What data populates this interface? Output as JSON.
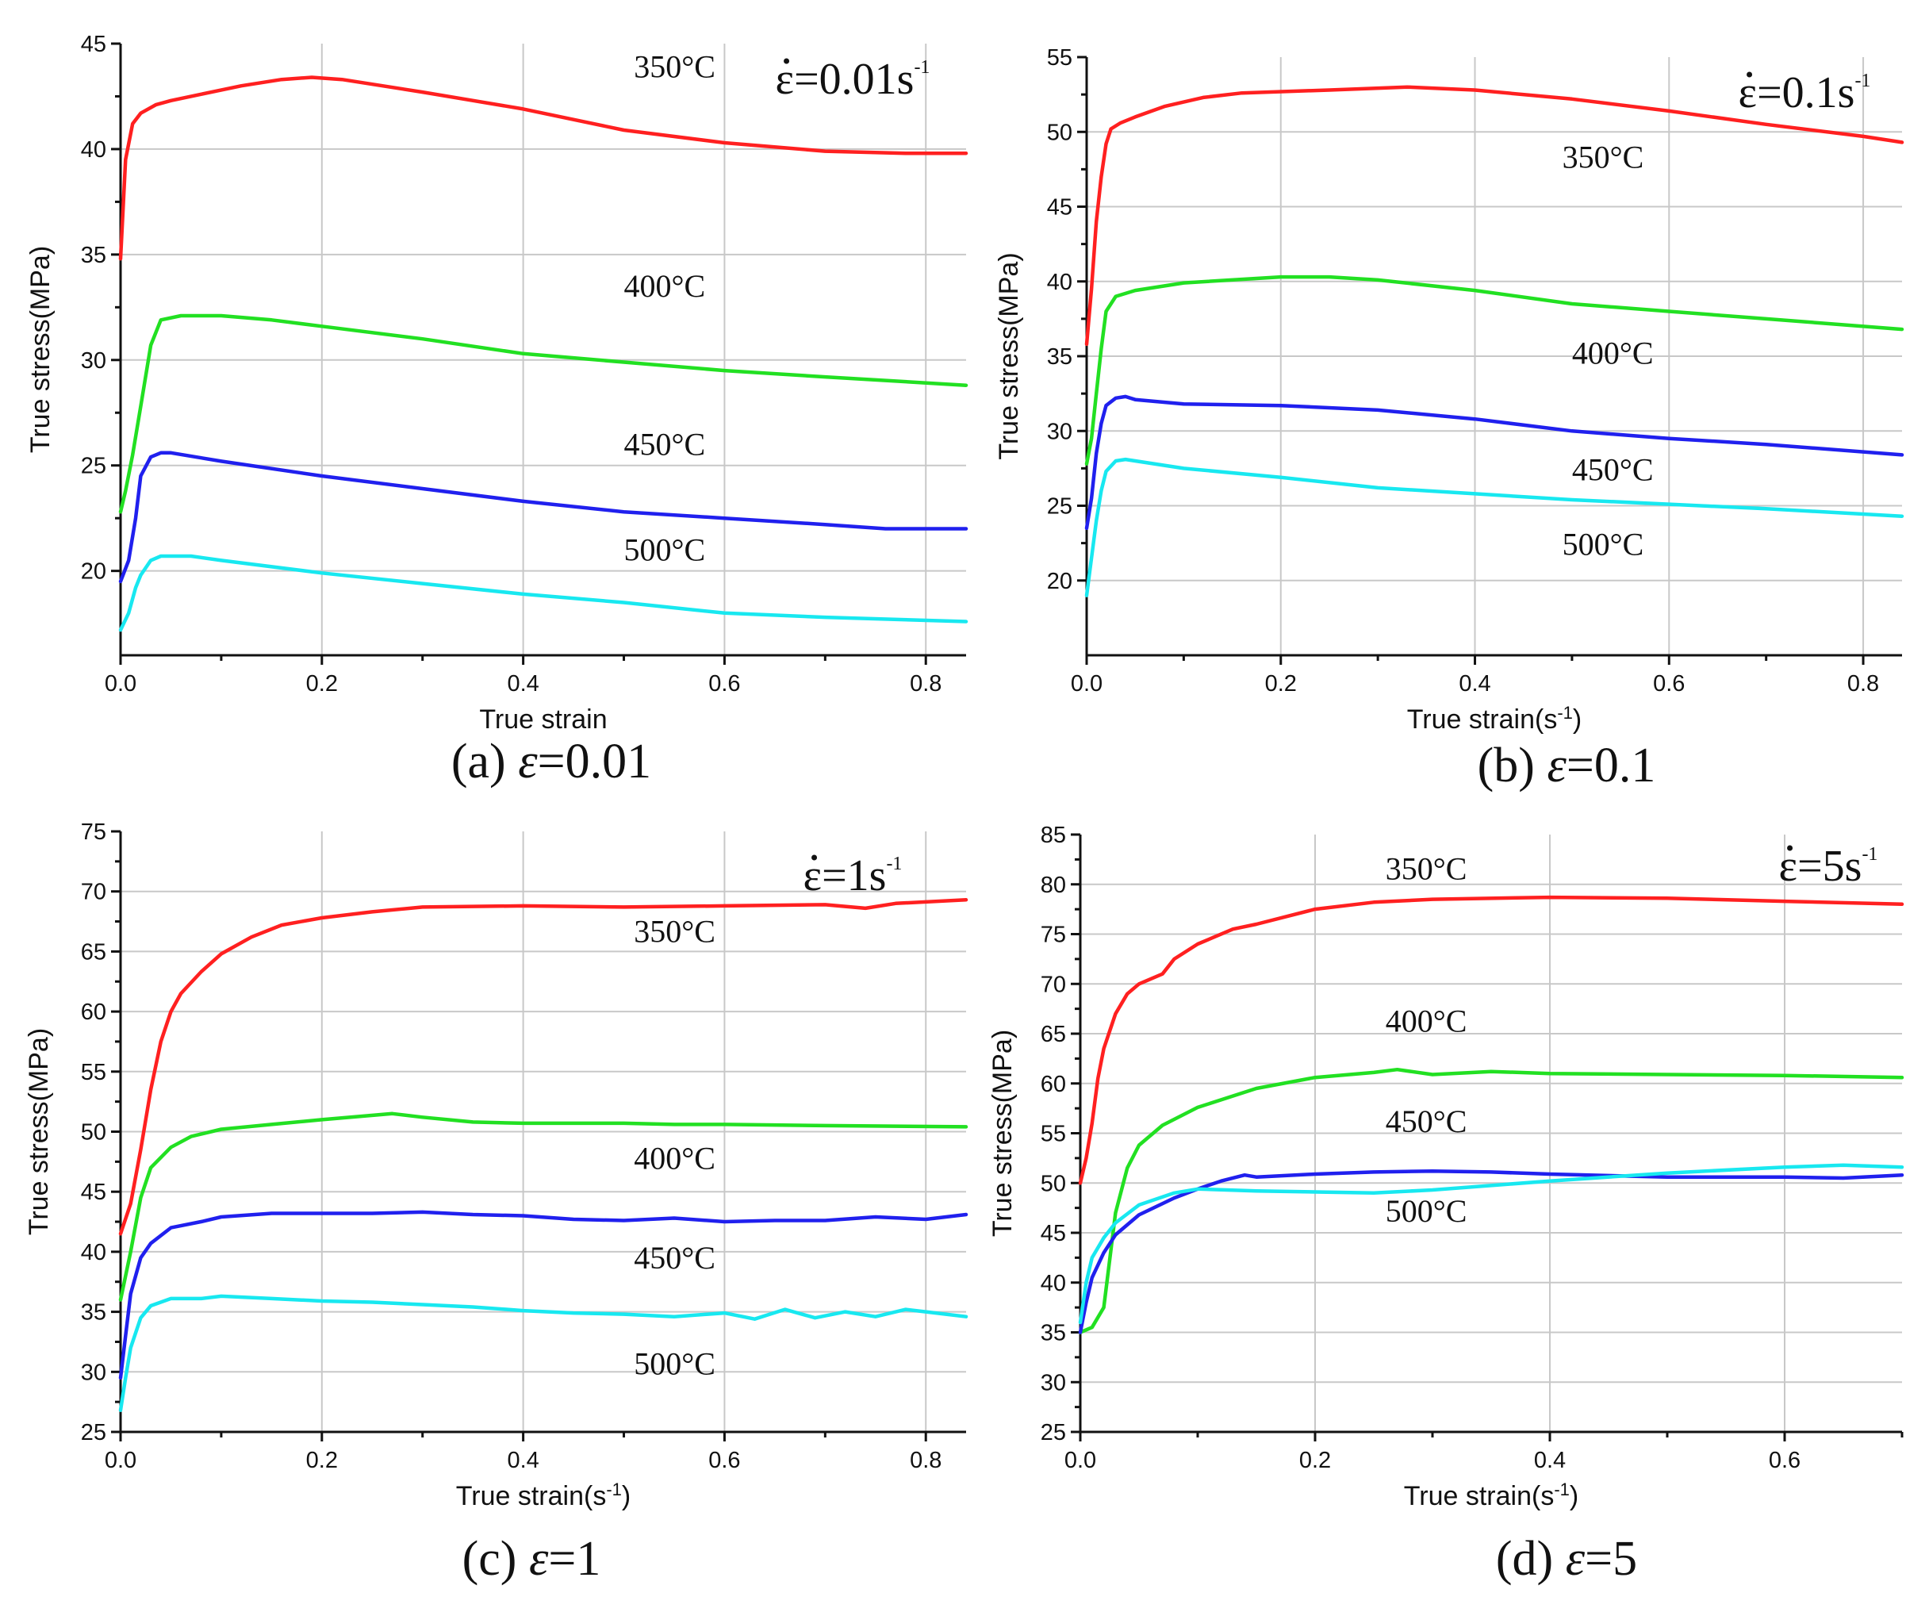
{
  "colors": {
    "350": "#ff2020",
    "400": "#22e022",
    "450": "#2020ee",
    "500": "#18e8f0"
  },
  "chart_data": [
    {
      "type": "line",
      "panel": "a",
      "caption_prefix": "(a) ",
      "caption_symbol": "ε",
      "caption_value": "=0.01",
      "rate_label": "ε=0.01s",
      "rate_sup": "-1",
      "xlabel": "True strain",
      "ylabel": "True stress(MPa)",
      "xlim": [
        0,
        0.84
      ],
      "ylim": [
        16,
        45
      ],
      "xticks": [
        0.0,
        0.2,
        0.4,
        0.6,
        0.8
      ],
      "xtick_labels": [
        "0.0",
        "0.2",
        "0.4",
        "0.6",
        "0.8"
      ],
      "yticks": [
        20,
        25,
        30,
        35,
        40,
        45
      ],
      "ytick_labels": [
        "20",
        "25",
        "30",
        "35",
        "40",
        "45"
      ],
      "grid": true,
      "series": [
        {
          "name": "350°C",
          "color_key": "350",
          "label_at": [
            0.51,
            43.4
          ],
          "x": [
            0,
            0.005,
            0.012,
            0.02,
            0.035,
            0.05,
            0.08,
            0.12,
            0.16,
            0.19,
            0.22,
            0.3,
            0.4,
            0.5,
            0.6,
            0.7,
            0.78,
            0.84
          ],
          "y": [
            34.8,
            39.5,
            41.2,
            41.7,
            42.1,
            42.3,
            42.6,
            43.0,
            43.3,
            43.4,
            43.3,
            42.7,
            41.9,
            40.9,
            40.3,
            39.9,
            39.8,
            39.8
          ]
        },
        {
          "name": "400°C",
          "color_key": "400",
          "label_at": [
            0.5,
            33.0
          ],
          "x": [
            0,
            0.005,
            0.012,
            0.02,
            0.03,
            0.04,
            0.06,
            0.1,
            0.15,
            0.2,
            0.3,
            0.4,
            0.5,
            0.6,
            0.7,
            0.84
          ],
          "y": [
            22.8,
            23.8,
            25.5,
            27.8,
            30.7,
            31.9,
            32.1,
            32.1,
            31.9,
            31.6,
            31.0,
            30.3,
            29.9,
            29.5,
            29.2,
            28.8
          ]
        },
        {
          "name": "450°C",
          "color_key": "450",
          "label_at": [
            0.5,
            25.5
          ],
          "x": [
            0,
            0.008,
            0.015,
            0.02,
            0.03,
            0.04,
            0.05,
            0.1,
            0.2,
            0.3,
            0.4,
            0.5,
            0.6,
            0.7,
            0.76,
            0.84
          ],
          "y": [
            19.5,
            20.5,
            22.5,
            24.5,
            25.4,
            25.6,
            25.6,
            25.2,
            24.5,
            23.9,
            23.3,
            22.8,
            22.5,
            22.2,
            22.0,
            22.0
          ]
        },
        {
          "name": "500°C",
          "color_key": "500",
          "label_at": [
            0.5,
            20.5
          ],
          "x": [
            0,
            0.008,
            0.015,
            0.02,
            0.03,
            0.04,
            0.05,
            0.07,
            0.1,
            0.2,
            0.3,
            0.4,
            0.5,
            0.6,
            0.7,
            0.84
          ],
          "y": [
            17.2,
            18.0,
            19.2,
            19.8,
            20.5,
            20.7,
            20.7,
            20.7,
            20.5,
            19.9,
            19.4,
            18.9,
            18.5,
            18.0,
            17.8,
            17.6
          ]
        }
      ]
    },
    {
      "type": "line",
      "panel": "b",
      "caption_prefix": "(b) ",
      "caption_symbol": "ε",
      "caption_value": "=0.1",
      "rate_label": "ε=0.1s",
      "rate_sup": "-1",
      "xlabel": "True strain(s",
      "xlabel_sup": "-1",
      "xlabel_end": ")",
      "ylabel": "True stress(MPa)",
      "xlim": [
        0,
        0.84
      ],
      "ylim": [
        15,
        55
      ],
      "xticks": [
        0.0,
        0.2,
        0.4,
        0.6,
        0.8
      ],
      "xtick_labels": [
        "0.0",
        "0.2",
        "0.4",
        "0.6",
        "0.8"
      ],
      "yticks": [
        20,
        25,
        30,
        35,
        40,
        45,
        50,
        55
      ],
      "ytick_labels": [
        "20",
        "25",
        "30",
        "35",
        "40",
        "45",
        "50",
        "55"
      ],
      "grid": true,
      "series": [
        {
          "name": "350°C",
          "color_key": "350",
          "label_at": [
            0.49,
            47.6
          ],
          "x": [
            0,
            0.005,
            0.01,
            0.015,
            0.02,
            0.025,
            0.035,
            0.05,
            0.08,
            0.12,
            0.16,
            0.25,
            0.33,
            0.4,
            0.5,
            0.6,
            0.7,
            0.8,
            0.84
          ],
          "y": [
            35.8,
            39.5,
            44.0,
            47.0,
            49.2,
            50.2,
            50.6,
            51.0,
            51.7,
            52.3,
            52.6,
            52.8,
            53.0,
            52.8,
            52.2,
            51.4,
            50.5,
            49.7,
            49.3
          ]
        },
        {
          "name": "400°C",
          "color_key": "400",
          "label_at": [
            0.5,
            34.5
          ],
          "x": [
            0,
            0.005,
            0.01,
            0.015,
            0.02,
            0.03,
            0.05,
            0.1,
            0.2,
            0.25,
            0.3,
            0.4,
            0.5,
            0.6,
            0.7,
            0.84
          ],
          "y": [
            27.8,
            29.5,
            32.5,
            35.5,
            38.0,
            39.0,
            39.4,
            39.9,
            40.3,
            40.3,
            40.1,
            39.4,
            38.5,
            38.0,
            37.5,
            36.8
          ]
        },
        {
          "name": "450°C",
          "color_key": "450",
          "label_at": [
            0.5,
            26.7
          ],
          "x": [
            0,
            0.005,
            0.01,
            0.015,
            0.02,
            0.03,
            0.04,
            0.05,
            0.1,
            0.2,
            0.3,
            0.4,
            0.5,
            0.6,
            0.7,
            0.84
          ],
          "y": [
            23.5,
            25.5,
            28.5,
            30.5,
            31.7,
            32.2,
            32.3,
            32.1,
            31.8,
            31.7,
            31.4,
            30.8,
            30.0,
            29.5,
            29.1,
            28.4
          ]
        },
        {
          "name": "500°C",
          "color_key": "500",
          "label_at": [
            0.49,
            21.7
          ],
          "x": [
            0,
            0.005,
            0.01,
            0.015,
            0.02,
            0.03,
            0.04,
            0.05,
            0.1,
            0.2,
            0.3,
            0.4,
            0.5,
            0.6,
            0.7,
            0.84
          ],
          "y": [
            19.0,
            21.5,
            24.0,
            26.0,
            27.3,
            28.0,
            28.1,
            28.0,
            27.5,
            26.9,
            26.2,
            25.8,
            25.4,
            25.1,
            24.8,
            24.3
          ]
        }
      ]
    },
    {
      "type": "line",
      "panel": "c",
      "caption_prefix": "(c)  ",
      "caption_symbol": "ε",
      "caption_value": "=1",
      "rate_label": "ε=1s",
      "rate_sup": "-1",
      "xlabel": "True strain(s",
      "xlabel_sup": "-1",
      "xlabel_end": ")",
      "ylabel": "True stress(MPa)",
      "xlim": [
        0,
        0.84
      ],
      "ylim": [
        25,
        75
      ],
      "xticks": [
        0.0,
        0.2,
        0.4,
        0.6,
        0.8
      ],
      "xtick_labels": [
        "0.0",
        "0.2",
        "0.4",
        "0.6",
        "0.8"
      ],
      "yticks": [
        25,
        30,
        35,
        40,
        45,
        50,
        55,
        60,
        65,
        70,
        75
      ],
      "ytick_labels": [
        "25",
        "30",
        "35",
        "40",
        "45",
        "50",
        "55",
        "60",
        "65",
        "70",
        "75"
      ],
      "grid": true,
      "series": [
        {
          "name": "350°C",
          "color_key": "350",
          "label_at": [
            0.51,
            65.8
          ],
          "x": [
            0,
            0.01,
            0.02,
            0.03,
            0.04,
            0.05,
            0.06,
            0.08,
            0.1,
            0.13,
            0.16,
            0.2,
            0.25,
            0.3,
            0.4,
            0.5,
            0.6,
            0.7,
            0.74,
            0.77,
            0.84
          ],
          "y": [
            41.5,
            44.0,
            48.5,
            53.5,
            57.5,
            60.0,
            61.5,
            63.3,
            64.8,
            66.2,
            67.2,
            67.8,
            68.3,
            68.7,
            68.8,
            68.7,
            68.8,
            68.9,
            68.6,
            69.0,
            69.3
          ]
        },
        {
          "name": "400°C",
          "color_key": "400",
          "label_at": [
            0.51,
            46.9
          ],
          "x": [
            0,
            0.01,
            0.02,
            0.03,
            0.05,
            0.07,
            0.1,
            0.15,
            0.2,
            0.27,
            0.3,
            0.35,
            0.4,
            0.5,
            0.55,
            0.6,
            0.7,
            0.84
          ],
          "y": [
            36.0,
            40.0,
            44.5,
            47.0,
            48.7,
            49.6,
            50.2,
            50.6,
            51.0,
            51.5,
            51.2,
            50.8,
            50.7,
            50.7,
            50.6,
            50.6,
            50.5,
            50.4
          ]
        },
        {
          "name": "450°C",
          "color_key": "450",
          "label_at": [
            0.51,
            38.6
          ],
          "x": [
            0,
            0.005,
            0.01,
            0.02,
            0.03,
            0.05,
            0.08,
            0.1,
            0.15,
            0.2,
            0.25,
            0.3,
            0.35,
            0.4,
            0.45,
            0.5,
            0.55,
            0.6,
            0.65,
            0.7,
            0.75,
            0.8,
            0.84
          ],
          "y": [
            29.5,
            33.0,
            36.5,
            39.5,
            40.7,
            42.0,
            42.5,
            42.9,
            43.2,
            43.2,
            43.2,
            43.3,
            43.1,
            43.0,
            42.7,
            42.6,
            42.8,
            42.5,
            42.6,
            42.6,
            42.9,
            42.7,
            43.1
          ]
        },
        {
          "name": "500°C",
          "color_key": "500",
          "label_at": [
            0.51,
            29.8
          ],
          "x": [
            0,
            0.005,
            0.01,
            0.02,
            0.03,
            0.05,
            0.08,
            0.1,
            0.15,
            0.2,
            0.25,
            0.3,
            0.35,
            0.4,
            0.45,
            0.5,
            0.55,
            0.6,
            0.63,
            0.66,
            0.69,
            0.72,
            0.75,
            0.78,
            0.81,
            0.84
          ],
          "y": [
            26.8,
            29.5,
            32.0,
            34.5,
            35.5,
            36.1,
            36.1,
            36.3,
            36.1,
            35.9,
            35.8,
            35.6,
            35.4,
            35.1,
            34.9,
            34.8,
            34.6,
            34.9,
            34.4,
            35.2,
            34.5,
            35.0,
            34.6,
            35.2,
            34.9,
            34.6
          ]
        }
      ]
    },
    {
      "type": "line",
      "panel": "d",
      "caption_prefix": "(d) ",
      "caption_symbol": "ε",
      "caption_value": "=5",
      "rate_label": "ε=5s",
      "rate_sup": "-1",
      "xlabel": "True strain(s",
      "xlabel_sup": "-1",
      "xlabel_end": ")",
      "ylabel": "True stress(MPa)",
      "xlim": [
        0,
        0.7
      ],
      "ylim": [
        25,
        85
      ],
      "xticks": [
        0.0,
        0.2,
        0.4,
        0.6
      ],
      "xtick_labels": [
        "0.0",
        "0.2",
        "0.4",
        "0.6"
      ],
      "yticks": [
        25,
        30,
        35,
        40,
        45,
        50,
        55,
        60,
        65,
        70,
        75,
        80,
        85
      ],
      "ytick_labels": [
        "25",
        "30",
        "35",
        "40",
        "45",
        "50",
        "55",
        "60",
        "65",
        "70",
        "75",
        "80",
        "85"
      ],
      "grid": true,
      "series": [
        {
          "name": "350°C",
          "color_key": "350",
          "label_at": [
            0.26,
            80.5
          ],
          "x": [
            0,
            0.005,
            0.01,
            0.015,
            0.02,
            0.03,
            0.04,
            0.05,
            0.07,
            0.08,
            0.1,
            0.13,
            0.15,
            0.2,
            0.25,
            0.3,
            0.4,
            0.5,
            0.6,
            0.7
          ],
          "y": [
            50.0,
            52.5,
            56.0,
            60.5,
            63.5,
            67.0,
            69.0,
            70.0,
            71.0,
            72.5,
            74.0,
            75.5,
            76.0,
            77.5,
            78.2,
            78.5,
            78.7,
            78.6,
            78.3,
            78.0
          ]
        },
        {
          "name": "400°C",
          "color_key": "400",
          "label_at": [
            0.26,
            65.2
          ],
          "x": [
            0,
            0.01,
            0.02,
            0.03,
            0.04,
            0.05,
            0.07,
            0.1,
            0.15,
            0.2,
            0.25,
            0.27,
            0.3,
            0.35,
            0.4,
            0.5,
            0.6,
            0.7
          ],
          "y": [
            35.0,
            35.5,
            37.5,
            47.0,
            51.5,
            53.8,
            55.8,
            57.6,
            59.5,
            60.6,
            61.1,
            61.4,
            60.9,
            61.2,
            61.0,
            60.9,
            60.8,
            60.6
          ]
        },
        {
          "name": "450°C",
          "color_key": "450",
          "label_at": [
            0.26,
            55.1
          ],
          "x": [
            0,
            0.005,
            0.01,
            0.02,
            0.03,
            0.05,
            0.08,
            0.1,
            0.12,
            0.14,
            0.15,
            0.2,
            0.25,
            0.3,
            0.35,
            0.4,
            0.5,
            0.6,
            0.65,
            0.7
          ],
          "y": [
            35.0,
            38.0,
            40.5,
            43.0,
            44.8,
            46.8,
            48.5,
            49.4,
            50.2,
            50.8,
            50.6,
            50.9,
            51.1,
            51.2,
            51.1,
            50.9,
            50.6,
            50.6,
            50.5,
            50.8
          ]
        },
        {
          "name": "500°C",
          "color_key": "500",
          "label_at": [
            0.26,
            46.1
          ],
          "x": [
            0,
            0.005,
            0.01,
            0.02,
            0.03,
            0.05,
            0.08,
            0.1,
            0.15,
            0.2,
            0.25,
            0.3,
            0.4,
            0.5,
            0.6,
            0.65,
            0.7
          ],
          "y": [
            36.0,
            40.0,
            42.5,
            44.5,
            46.0,
            47.8,
            49.0,
            49.4,
            49.2,
            49.1,
            49.0,
            49.3,
            50.2,
            51.0,
            51.6,
            51.8,
            51.6
          ]
        }
      ]
    }
  ]
}
